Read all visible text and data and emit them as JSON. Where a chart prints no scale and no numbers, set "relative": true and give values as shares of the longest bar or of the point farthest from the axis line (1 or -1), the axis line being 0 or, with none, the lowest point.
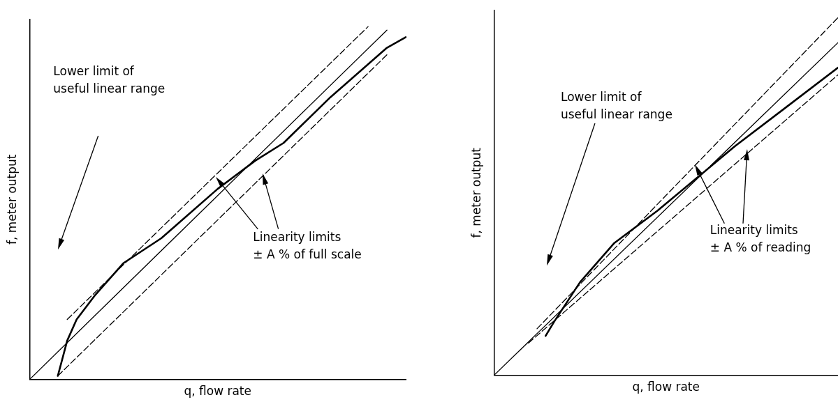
{
  "chart_data": [
    {
      "type": "line",
      "relative": true,
      "xlabel": "q, flow rate",
      "ylabel": "f, meter output",
      "categories": [
        null,
        null,
        null,
        null,
        null,
        null,
        null,
        null,
        null,
        null,
        null,
        null,
        null,
        null,
        null,
        null,
        null,
        null,
        null,
        null,
        null,
        null,
        null,
        null,
        null,
        null,
        null,
        null,
        null,
        null,
        null,
        null,
        null,
        null,
        null,
        null,
        null,
        null,
        null,
        null,
        null
      ],
      "series": [
        {
          "color": "#000000",
          "line_style": "solid",
          "values": [
            0,
            null,
            null,
            null,
            null,
            null,
            null,
            null,
            null,
            null,
            null,
            null,
            null,
            null,
            null,
            null,
            null,
            null,
            null,
            null,
            null,
            null,
            null,
            null,
            null,
            null,
            null,
            null,
            null,
            null,
            null,
            null,
            null,
            null,
            null,
            null,
            null,
            null,
            0.99,
            null,
            null
          ]
        },
        {
          "color": "#000000",
          "line_style": "dashed",
          "values": [
            null,
            null,
            null,
            null,
            0.17,
            null,
            null,
            null,
            null,
            null,
            null,
            null,
            null,
            null,
            null,
            null,
            null,
            null,
            null,
            null,
            null,
            null,
            null,
            null,
            null,
            null,
            null,
            null,
            null,
            null,
            null,
            null,
            null,
            null,
            null,
            null,
            1.0,
            null,
            null,
            null,
            null
          ]
        },
        {
          "color": "#000000",
          "line_style": "dashed",
          "values": [
            null,
            null,
            null,
            0.01,
            null,
            null,
            null,
            null,
            null,
            null,
            null,
            null,
            null,
            null,
            null,
            null,
            null,
            null,
            null,
            null,
            null,
            null,
            null,
            null,
            null,
            null,
            null,
            null,
            null,
            null,
            null,
            null,
            null,
            null,
            null,
            null,
            null,
            null,
            0.92,
            null,
            null
          ]
        },
        {
          "color": "#000000",
          "line_style": "solid",
          "values": [
            null,
            null,
            null,
            0.01,
            0.11,
            0.17,
            null,
            0.24,
            null,
            null,
            0.33,
            null,
            null,
            null,
            0.4,
            null,
            null,
            null,
            null,
            null,
            0.54,
            null,
            null,
            null,
            0.62,
            null,
            null,
            0.67,
            null,
            null,
            null,
            null,
            0.8,
            null,
            null,
            null,
            null,
            null,
            0.94,
            null,
            0.97
          ]
        }
      ],
      "annotations": [
        "Lower limit of\nuseful linear range",
        "Linearity limits\n± A % of full scale"
      ],
      "marker": "none",
      "grid": false,
      "legend": false
    },
    {
      "type": "line",
      "relative": true,
      "xlabel": "q, flow rate",
      "ylabel": "f, meter output",
      "categories": [
        null,
        null,
        null,
        null,
        null,
        null,
        null,
        null,
        null,
        null,
        null,
        null,
        null,
        null,
        null,
        null,
        null,
        null,
        null,
        null,
        null,
        null,
        null,
        null,
        null,
        null,
        null,
        null,
        null,
        null,
        null,
        null,
        null,
        null,
        null,
        null,
        null,
        null,
        null,
        null,
        null
      ],
      "series": [
        {
          "color": "#000000",
          "line_style": "solid",
          "values": [
            0,
            null,
            null,
            null,
            null,
            null,
            null,
            null,
            null,
            null,
            null,
            null,
            null,
            null,
            null,
            null,
            null,
            null,
            null,
            null,
            null,
            null,
            null,
            null,
            null,
            null,
            null,
            null,
            null,
            null,
            null,
            null,
            null,
            null,
            null,
            null,
            null,
            null,
            null,
            null,
            0.93
          ]
        },
        {
          "color": "#000000",
          "line_style": "dashed",
          "values": [
            null,
            null,
            null,
            null,
            null,
            0.13,
            null,
            null,
            null,
            null,
            null,
            null,
            null,
            null,
            null,
            null,
            null,
            null,
            null,
            null,
            null,
            null,
            null,
            null,
            null,
            null,
            null,
            null,
            null,
            null,
            null,
            null,
            null,
            null,
            null,
            null,
            null,
            null,
            null,
            null,
            1.0
          ]
        },
        {
          "color": "#000000",
          "line_style": "dashed",
          "values": [
            null,
            null,
            null,
            null,
            0.09,
            null,
            null,
            null,
            null,
            null,
            null,
            null,
            null,
            null,
            null,
            null,
            null,
            null,
            null,
            null,
            null,
            null,
            null,
            null,
            null,
            null,
            null,
            null,
            null,
            null,
            null,
            null,
            null,
            null,
            null,
            null,
            null,
            null,
            null,
            null,
            0.84
          ]
        },
        {
          "color": "#000000",
          "line_style": "solid",
          "values": [
            null,
            null,
            null,
            null,
            null,
            null,
            0.11,
            0.15,
            null,
            null,
            0.26,
            null,
            null,
            null,
            0.37,
            null,
            null,
            null,
            null,
            0.46,
            null,
            null,
            null,
            null,
            0.56,
            null,
            null,
            null,
            0.64,
            null,
            null,
            null,
            null,
            null,
            0.75,
            null,
            null,
            null,
            null,
            null,
            0.86
          ]
        }
      ],
      "annotations": [
        "Lower limit of\nuseful linear range",
        "Linearity limits\n± A % of reading"
      ],
      "marker": "none",
      "grid": false,
      "legend": false
    }
  ]
}
